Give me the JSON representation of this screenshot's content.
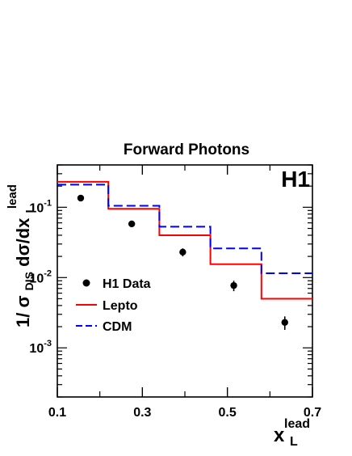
{
  "chart_data": {
    "type": "step",
    "title": "Forward Photons",
    "badge": "H1",
    "xlabel": {
      "main": "x",
      "sub": "L",
      "sup": "lead"
    },
    "ylabel": {
      "prefix": "1/",
      "sigma": "σ",
      "sigma_sub": "DIS",
      "middle": " dσ/dx",
      "sub": "L",
      "sup": "lead"
    },
    "xlim": [
      0.1,
      0.7
    ],
    "ylim": [
      0.0002,
      0.4
    ],
    "yscale": "log",
    "x_major_ticks": [
      0.1,
      0.3,
      0.5,
      0.7
    ],
    "x_minor_ticks": [
      0.2,
      0.4,
      0.6
    ],
    "x_tick_labels": [
      "0.1",
      "0.3",
      "0.5",
      "0.7"
    ],
    "y_major_ticks": [
      {
        "value": 0.001,
        "base": "10",
        "exp": "-3"
      },
      {
        "value": 0.01,
        "base": "10",
        "exp": "-2"
      },
      {
        "value": 0.1,
        "base": "10",
        "exp": "-1"
      }
    ],
    "bin_edges": [
      0.1,
      0.22,
      0.34,
      0.46,
      0.58,
      0.7
    ],
    "series": [
      {
        "name": "H1 Data",
        "kind": "points",
        "color": "#000000",
        "x": [
          0.155,
          0.275,
          0.395,
          0.515,
          0.635
        ],
        "y": [
          0.135,
          0.058,
          0.023,
          0.0077,
          0.0023
        ],
        "err": [
          0.011,
          0.006,
          0.003,
          0.0013,
          0.0005
        ]
      },
      {
        "name": "Lepto",
        "kind": "step",
        "color": "#ff0000",
        "dash": "solid",
        "values": [
          0.23,
          0.095,
          0.04,
          0.0155,
          0.005
        ]
      },
      {
        "name": "CDM",
        "kind": "step",
        "color": "#0000ff",
        "dash": "dashed",
        "values": [
          0.21,
          0.105,
          0.053,
          0.026,
          0.0115
        ]
      }
    ],
    "legend_position": "bottom-left"
  }
}
